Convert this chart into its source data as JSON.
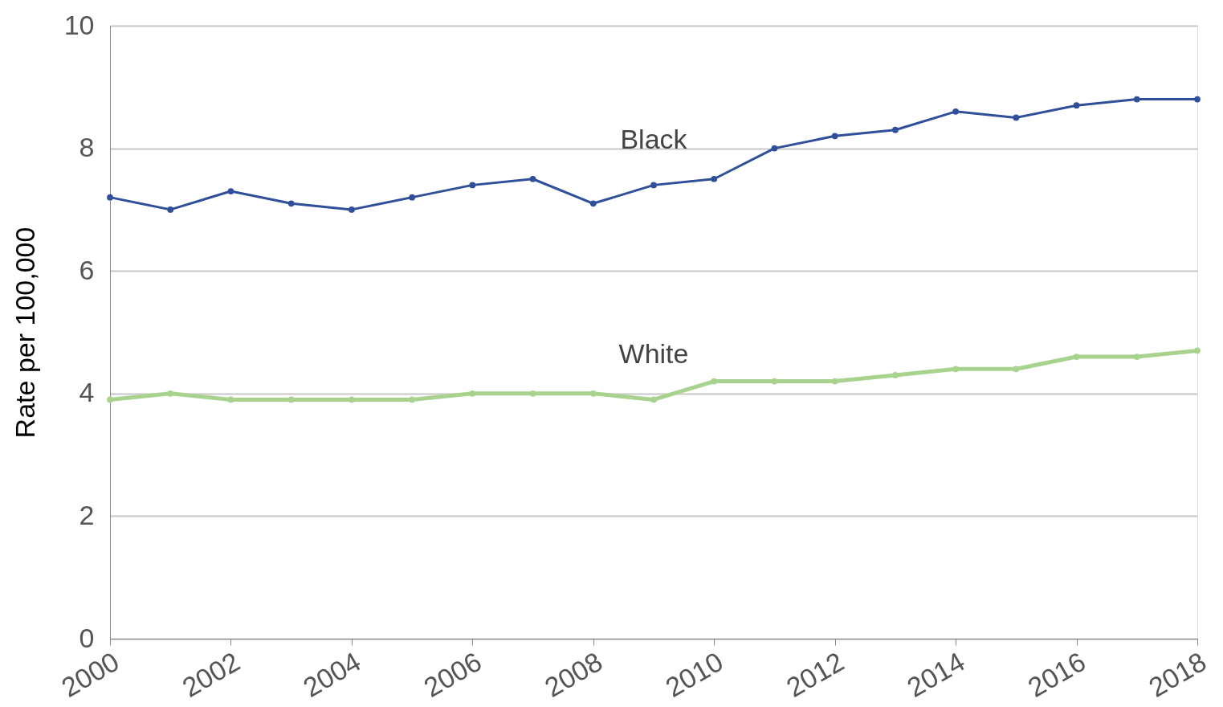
{
  "chart_data": {
    "type": "line",
    "ylabel": "Rate per 100,000",
    "x": [
      2000,
      2001,
      2002,
      2003,
      2004,
      2005,
      2006,
      2007,
      2008,
      2009,
      2010,
      2011,
      2012,
      2013,
      2014,
      2015,
      2016,
      2017,
      2018
    ],
    "series": [
      {
        "name": "Black",
        "color": "#2f4f9b",
        "values": [
          7.2,
          7.0,
          7.3,
          7.1,
          7.0,
          7.2,
          7.4,
          7.5,
          7.1,
          7.4,
          7.5,
          8.0,
          8.2,
          8.3,
          8.6,
          8.5,
          8.7,
          8.8,
          8.8
        ]
      },
      {
        "name": "White",
        "color": "#a8d38e",
        "values": [
          3.9,
          4.0,
          3.9,
          3.9,
          3.9,
          3.9,
          4.0,
          4.0,
          4.0,
          3.9,
          4.2,
          4.2,
          4.2,
          4.3,
          4.4,
          4.4,
          4.6,
          4.6,
          4.7
        ]
      }
    ],
    "xlim": [
      2000,
      2018
    ],
    "xticks": [
      2000,
      2002,
      2004,
      2006,
      2008,
      2010,
      2012,
      2014,
      2016,
      2018
    ],
    "ylim": [
      0,
      10
    ],
    "yticks": [
      0,
      2,
      4,
      6,
      8,
      10
    ],
    "grid": "y",
    "legend": false,
    "marker": "circle",
    "line_style": "solid"
  }
}
